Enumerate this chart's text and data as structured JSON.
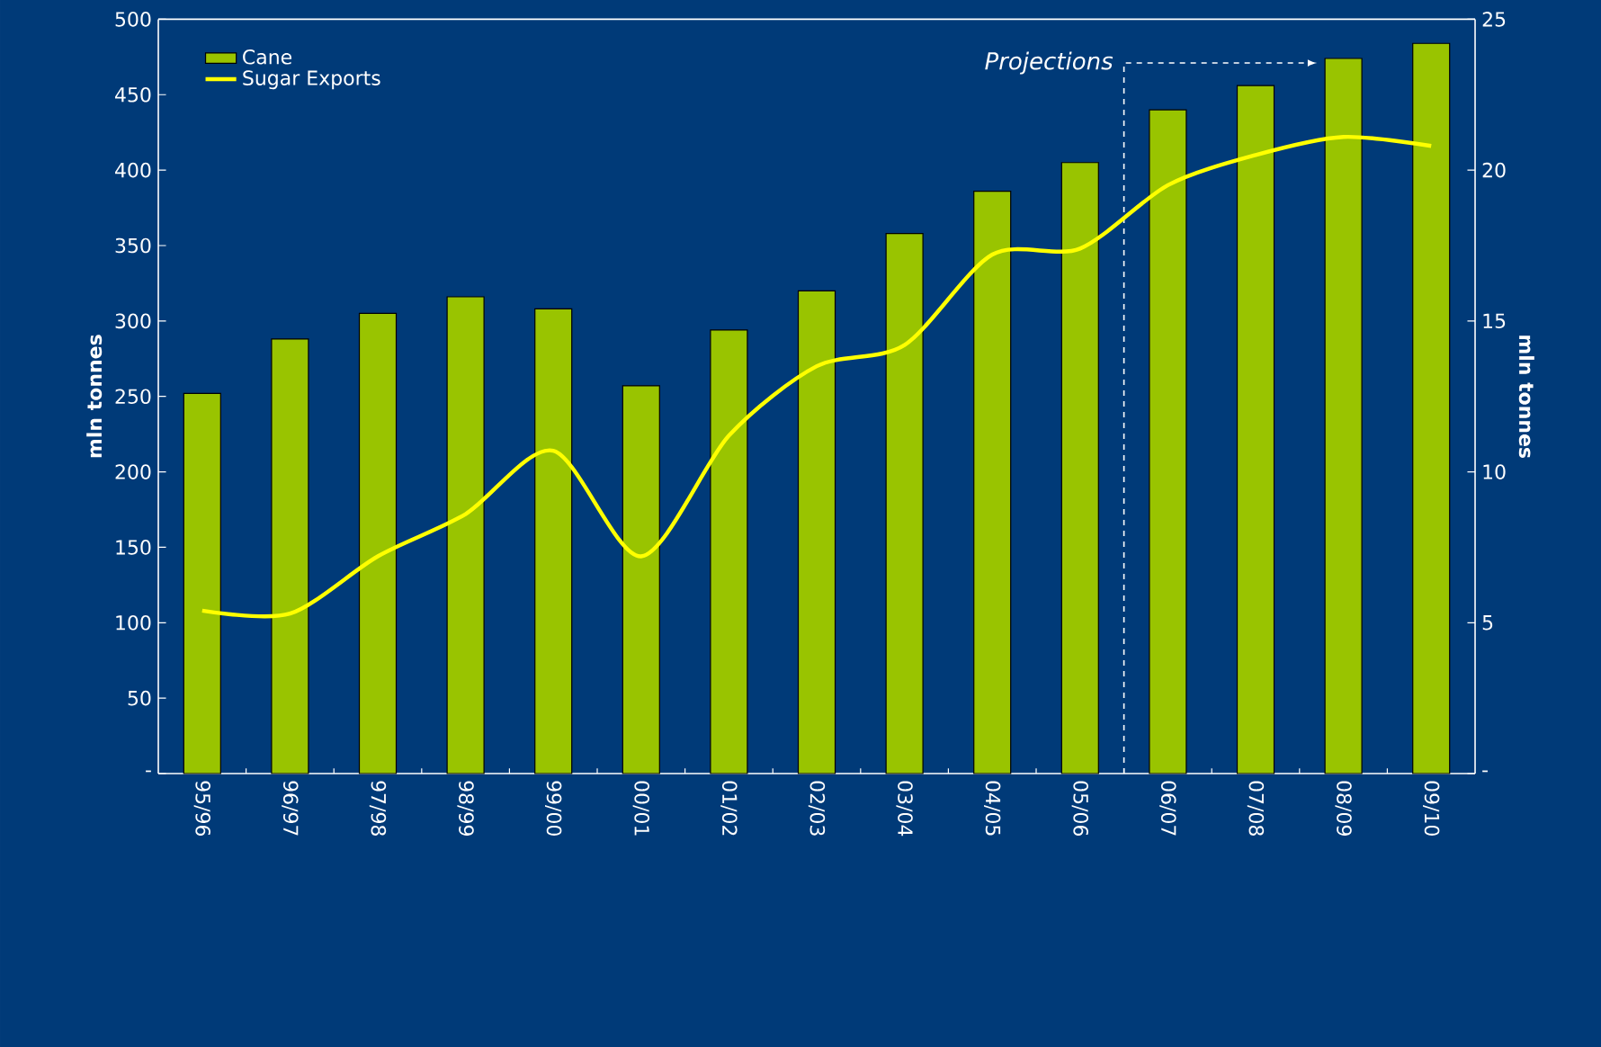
{
  "chart_data": {
    "type": "bar",
    "categories": [
      "95/96",
      "96/97",
      "97/98",
      "98/99",
      "99/00",
      "00/01",
      "01/02",
      "02/03",
      "03/04",
      "04/05",
      "05/06",
      "06/07",
      "07/08",
      "08/09",
      "09/10"
    ],
    "series": [
      {
        "name": "Cane",
        "axis": "y",
        "color": "#99c400",
        "values": [
          252,
          288,
          305,
          316,
          308,
          257,
          294,
          320,
          358,
          386,
          405,
          440,
          456,
          474,
          484
        ]
      },
      {
        "name": "Sugar Exports",
        "type": "line",
        "axis": "y2",
        "color": "#ffff00",
        "values": [
          5.4,
          5.3,
          7.2,
          8.6,
          10.7,
          7.2,
          11.2,
          13.5,
          14.2,
          17.2,
          17.4,
          19.5,
          20.5,
          21.1,
          20.8
        ]
      }
    ],
    "ylim": [
      0,
      500
    ],
    "yticks": [
      {
        "value": 0,
        "label": "-"
      },
      50,
      100,
      150,
      200,
      250,
      300,
      350,
      400,
      450,
      500
    ],
    "y2lim": [
      0,
      25
    ],
    "y2ticks": [
      {
        "value": 0,
        "label": "-"
      },
      5,
      10,
      15,
      20,
      25
    ],
    "ylabel": "mln tonnes",
    "y2label": "mln tonnes",
    "legend": "top left",
    "annotations": [
      "Projections"
    ]
  }
}
